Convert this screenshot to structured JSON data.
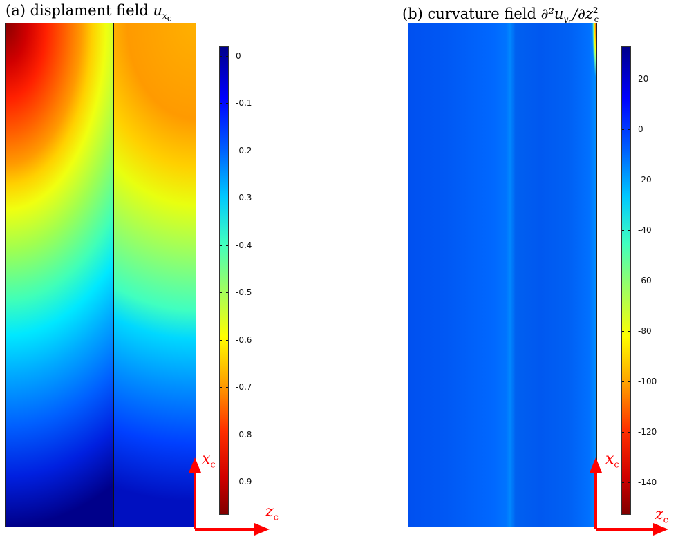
{
  "panel_a": {
    "title_prefix": "(a) displament field ",
    "title_var": "u",
    "title_sub": "x",
    "title_subsub": "c",
    "colorbar_ticks": [
      "0",
      "-0.1",
      "-0.2",
      "-0.3",
      "-0.4",
      "-0.5",
      "-0.6",
      "-0.7",
      "-0.8",
      "-0.9"
    ],
    "colorbar_range": [
      -0.97,
      0.02
    ]
  },
  "panel_b": {
    "title_prefix": "(b) curvature field ",
    "title_expr": "∂²u",
    "title_sub": "y",
    "title_subsub": "c",
    "title_mid": "/∂z",
    "title_sup": "2",
    "title_sub2": "c",
    "colorbar_ticks": [
      "20",
      "0",
      "-20",
      "-40",
      "-60",
      "-80",
      "-100",
      "-120",
      "-140"
    ],
    "colorbar_range": [
      -153,
      33
    ]
  },
  "axes": {
    "vertical_label": "x",
    "horizontal_label": "z",
    "label_sub": "c",
    "color": "#ff0000"
  },
  "colormap": "jet"
}
